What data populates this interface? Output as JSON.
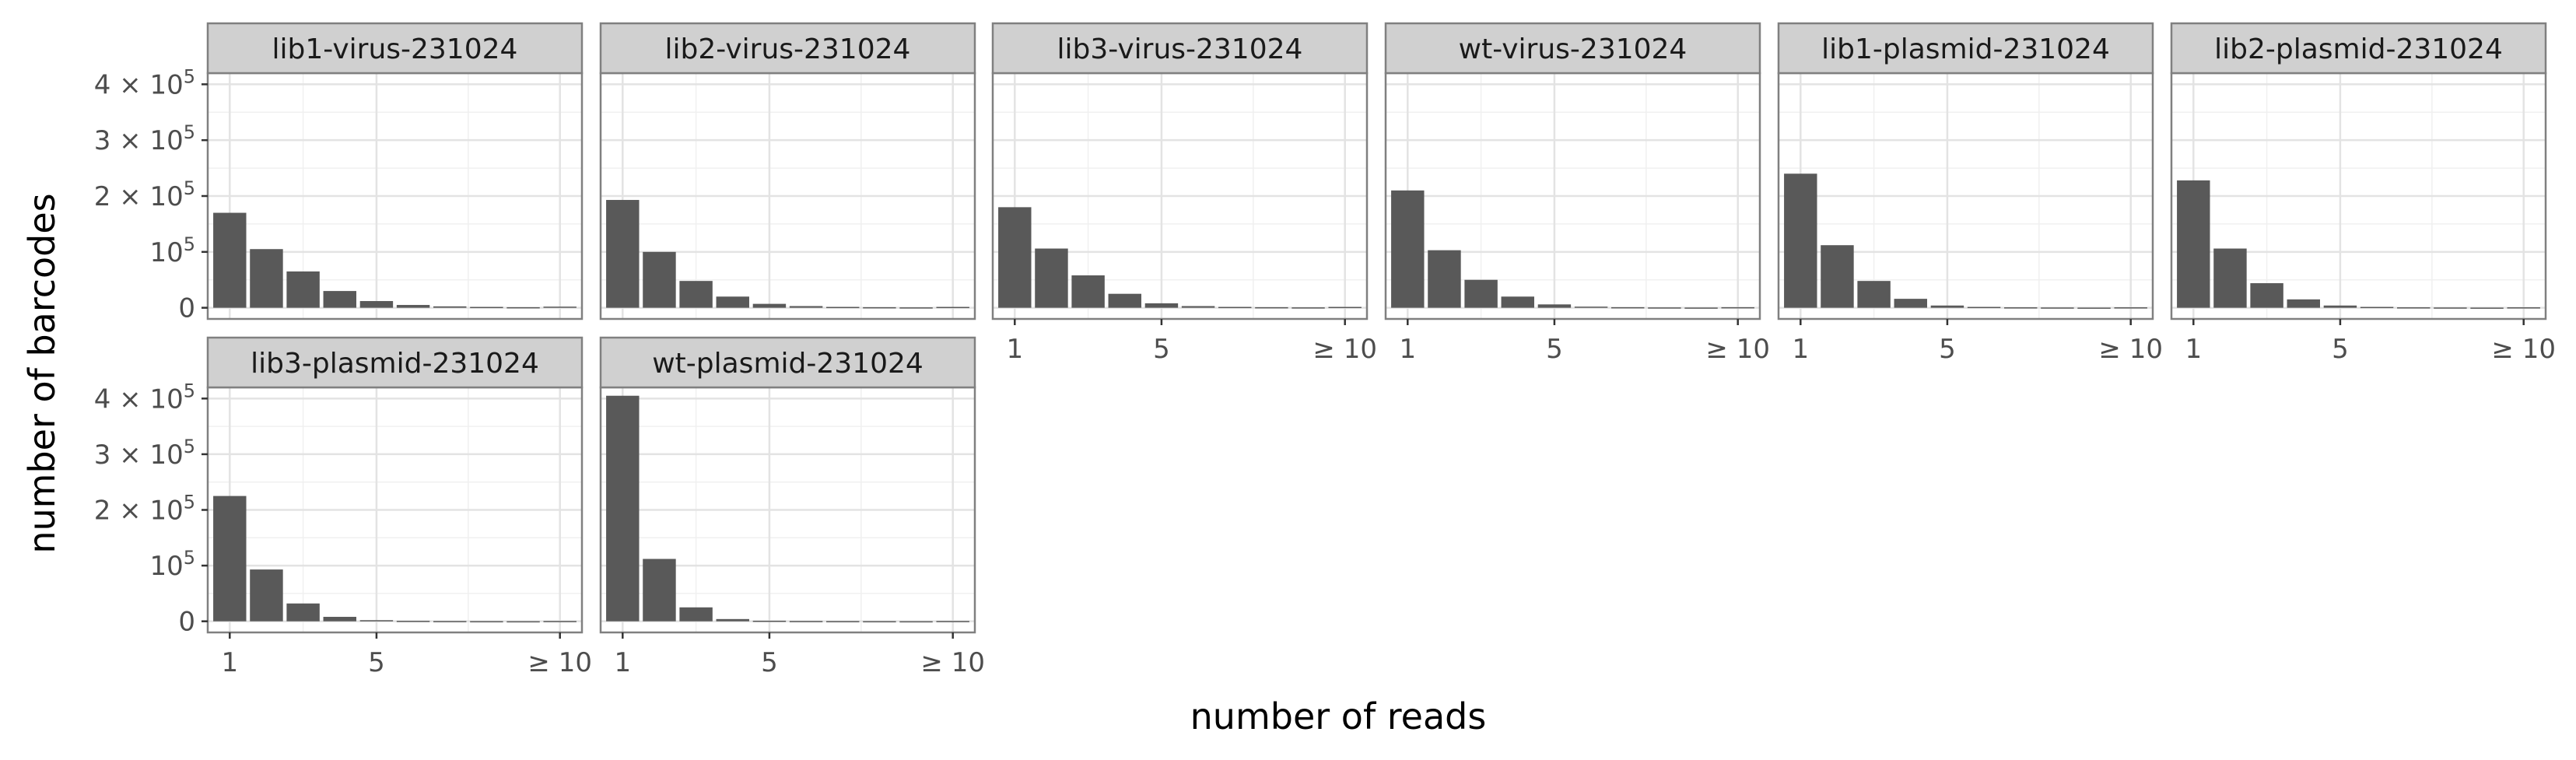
{
  "chart_data": {
    "type": "bar",
    "layout": "facet_wrap",
    "xlabel": "number of reads",
    "ylabel": "number of barcodes",
    "x_ticks": [
      {
        "value": 1,
        "label": "1"
      },
      {
        "value": 5,
        "label": "5"
      },
      {
        "value": 10,
        "label": "≥ 10"
      }
    ],
    "y_ticks": [
      {
        "value": 0,
        "base": "0",
        "exp": ""
      },
      {
        "value": 100000,
        "base": "10",
        "exp": "5"
      },
      {
        "value": 200000,
        "base": "2 × 10",
        "exp": "5"
      },
      {
        "value": 300000,
        "base": "3 × 10",
        "exp": "5"
      },
      {
        "value": 400000,
        "base": "4 × 10",
        "exp": "5"
      }
    ],
    "xlim": [
      0.4,
      10.6
    ],
    "ylim": [
      -20000,
      420000
    ],
    "grid": true,
    "bar_color": "#595959",
    "categories": [
      1,
      2,
      3,
      4,
      5,
      6,
      7,
      8,
      9,
      10
    ],
    "panels": [
      {
        "name": "lib1-virus-231024",
        "values": [
          170000,
          105000,
          65000,
          30000,
          12000,
          5000,
          2500,
          1500,
          1000,
          2000
        ]
      },
      {
        "name": "lib2-virus-231024",
        "values": [
          193000,
          100000,
          48000,
          20000,
          7000,
          3000,
          1500,
          1000,
          700,
          1500
        ]
      },
      {
        "name": "lib3-virus-231024",
        "values": [
          180000,
          106000,
          58000,
          25000,
          8000,
          3000,
          1500,
          1000,
          700,
          1500
        ]
      },
      {
        "name": "wt-virus-231024",
        "values": [
          210000,
          103000,
          50000,
          20000,
          6000,
          2000,
          1000,
          600,
          400,
          1000
        ]
      },
      {
        "name": "lib1-plasmid-231024",
        "values": [
          240000,
          112000,
          48000,
          16000,
          4000,
          1500,
          800,
          500,
          300,
          800
        ]
      },
      {
        "name": "lib2-plasmid-231024",
        "values": [
          228000,
          106000,
          44000,
          15000,
          4000,
          1500,
          800,
          500,
          300,
          800
        ]
      },
      {
        "name": "lib3-plasmid-231024",
        "values": [
          225000,
          93000,
          32000,
          8000,
          2000,
          800,
          400,
          200,
          100,
          500
        ]
      },
      {
        "name": "wt-plasmid-231024",
        "values": [
          405000,
          112000,
          25000,
          4000,
          1000,
          500,
          300,
          200,
          100,
          500
        ]
      }
    ]
  }
}
